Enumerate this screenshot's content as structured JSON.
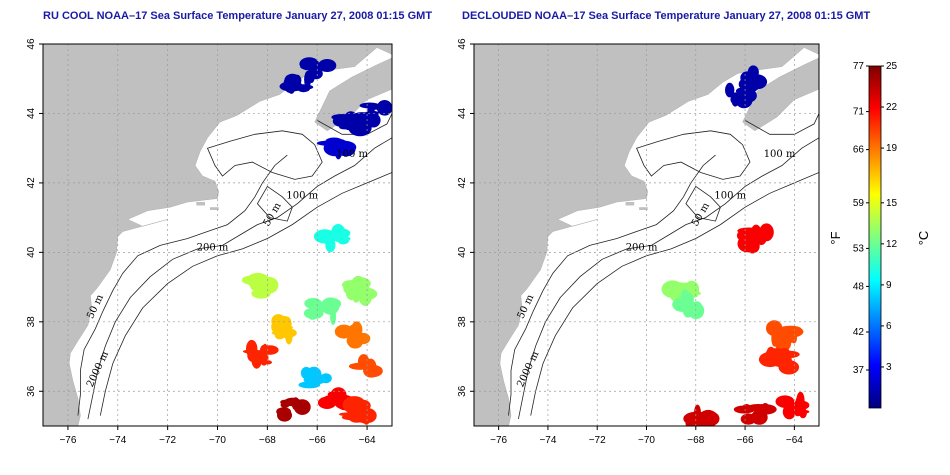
{
  "chart_data": [
    {
      "type": "heatmap",
      "title": "RU COOL NOAA–17 Sea Surface Temperature January 27, 2008 01:15 GMT",
      "xlim": [
        -77,
        -63
      ],
      "ylim": [
        35,
        46
      ],
      "xticks": [
        "−76",
        "−74",
        "−72",
        "−70",
        "−68",
        "−66",
        "−64"
      ],
      "yticks": [
        "36",
        "38",
        "40",
        "42",
        "44",
        "46"
      ],
      "grid": true,
      "contour_labels": [
        "200 m",
        "50 m",
        "2000 m",
        "100 m",
        "50 m",
        "100 m"
      ],
      "patches": [
        {
          "lon": -66.8,
          "lat": 44.8,
          "temp_c": 1
        },
        {
          "lon": -66.0,
          "lat": 45.3,
          "temp_c": 1
        },
        {
          "lon": -64.6,
          "lat": 43.7,
          "temp_c": 1
        },
        {
          "lon": -63.6,
          "lat": 44.0,
          "temp_c": 1
        },
        {
          "lon": -65.2,
          "lat": 43.0,
          "temp_c": 2
        },
        {
          "lon": -65.3,
          "lat": 40.4,
          "temp_c": 10
        },
        {
          "lon": -68.3,
          "lat": 39.0,
          "temp_c": 14
        },
        {
          "lon": -64.3,
          "lat": 38.9,
          "temp_c": 13
        },
        {
          "lon": -65.8,
          "lat": 38.3,
          "temp_c": 12
        },
        {
          "lon": -64.5,
          "lat": 37.6,
          "temp_c": 19
        },
        {
          "lon": -67.4,
          "lat": 37.8,
          "temp_c": 17
        },
        {
          "lon": -68.2,
          "lat": 37.0,
          "temp_c": 21
        },
        {
          "lon": -64.0,
          "lat": 36.8,
          "temp_c": 20
        },
        {
          "lon": -65.2,
          "lat": 35.8,
          "temp_c": 22
        },
        {
          "lon": -67.0,
          "lat": 35.5,
          "temp_c": 24
        },
        {
          "lon": -64.3,
          "lat": 35.4,
          "temp_c": 21
        },
        {
          "lon": -66.0,
          "lat": 36.4,
          "temp_c": 8
        }
      ]
    },
    {
      "type": "heatmap",
      "title": "DECLOUDED NOAA–17 Sea Surface Temperature January 27, 2008 01:15 GMT",
      "xlim": [
        -77,
        -63
      ],
      "ylim": [
        35,
        46
      ],
      "xticks": [
        "−76",
        "−74",
        "−72",
        "−70",
        "−68",
        "−66",
        "−64"
      ],
      "yticks": [
        "36",
        "38",
        "40",
        "42",
        "44",
        "46"
      ],
      "grid": true,
      "contour_labels": [
        "200 m",
        "50 m",
        "2000 m",
        "100 m",
        "50 m",
        "100 m"
      ],
      "patches": [
        {
          "lon": -66.2,
          "lat": 44.6,
          "temp_c": 1
        },
        {
          "lon": -65.7,
          "lat": 45.0,
          "temp_c": 1
        },
        {
          "lon": -65.5,
          "lat": 40.4,
          "temp_c": 22
        },
        {
          "lon": -68.5,
          "lat": 38.9,
          "temp_c": 13
        },
        {
          "lon": -68.3,
          "lat": 38.5,
          "temp_c": 12
        },
        {
          "lon": -64.4,
          "lat": 37.6,
          "temp_c": 20
        },
        {
          "lon": -64.6,
          "lat": 36.9,
          "temp_c": 21
        },
        {
          "lon": -64.0,
          "lat": 35.6,
          "temp_c": 22
        },
        {
          "lon": -65.6,
          "lat": 35.4,
          "temp_c": 23
        },
        {
          "lon": -67.6,
          "lat": 35.2,
          "temp_c": 23
        }
      ]
    }
  ],
  "colorbar": {
    "fahrenheit_ticks": [
      "77",
      "71",
      "66",
      "59",
      "53",
      "48",
      "42",
      "37"
    ],
    "celsius_ticks": [
      "25",
      "22",
      "19",
      "15",
      "12",
      "9",
      "6",
      "3"
    ],
    "fahrenheit_label": "°F",
    "celsius_label": "°C",
    "celsius_range": [
      0,
      25
    ],
    "colors": [
      "#00007f",
      "#0000ff",
      "#007fff",
      "#00ffff",
      "#7fff7f",
      "#ffff00",
      "#ff7f00",
      "#ff0000",
      "#7f0000"
    ]
  }
}
